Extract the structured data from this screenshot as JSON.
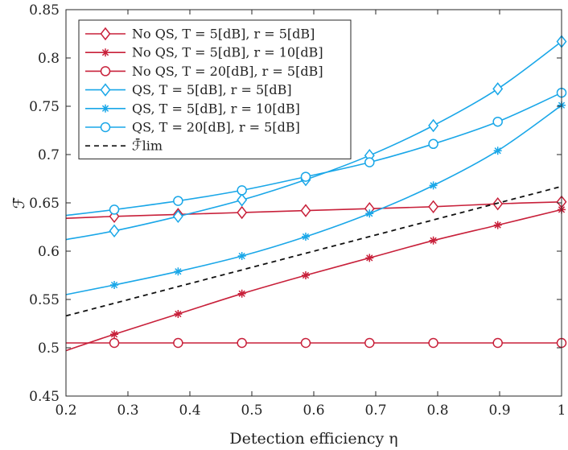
{
  "chart_data": {
    "type": "line",
    "xlabel": "Detection efficiency η",
    "ylabel": "ℱ̄",
    "xlim": [
      0.2,
      1.0
    ],
    "ylim": [
      0.45,
      0.85
    ],
    "xticks": [
      "0.2",
      "0.3",
      "0.4",
      "0.5",
      "0.6",
      "0.7",
      "0.8",
      "0.9",
      "1"
    ],
    "yticks": [
      "0.45",
      "0.5",
      "0.55",
      "0.6",
      "0.65",
      "0.7",
      "0.75",
      "0.8",
      "0.85"
    ],
    "xtick_values": [
      0.2,
      0.3,
      0.4,
      0.5,
      0.6,
      0.7,
      0.8,
      0.9,
      1.0
    ],
    "ytick_values": [
      0.45,
      0.5,
      0.55,
      0.6,
      0.65,
      0.7,
      0.75,
      0.8,
      0.85
    ],
    "marker_x": [
      0.278,
      0.381,
      0.484,
      0.587,
      0.69,
      0.793,
      0.897,
      1.0
    ],
    "grid": false,
    "legend_position": "top-left",
    "series": [
      {
        "name": "No QS, T = 5[dB], r = 5[dB]",
        "color": "#c8203a",
        "marker": "diamond",
        "dash": "solid",
        "line_x": [
          0.2,
          0.278,
          0.381,
          0.484,
          0.587,
          0.69,
          0.793,
          0.897,
          1.0
        ],
        "line_y": [
          0.634,
          0.636,
          0.638,
          0.64,
          0.642,
          0.644,
          0.646,
          0.649,
          0.651
        ],
        "marker_y": [
          0.636,
          0.638,
          0.64,
          0.642,
          0.644,
          0.646,
          0.649,
          0.651
        ]
      },
      {
        "name": "No QS, T = 5[dB], r = 10[dB]",
        "color": "#c8203a",
        "marker": "star",
        "dash": "solid",
        "line_x": [
          0.2,
          0.278,
          0.381,
          0.484,
          0.587,
          0.69,
          0.793,
          0.897,
          1.0
        ],
        "line_y": [
          0.497,
          0.514,
          0.535,
          0.556,
          0.575,
          0.593,
          0.611,
          0.627,
          0.643
        ],
        "marker_y": [
          0.514,
          0.535,
          0.556,
          0.575,
          0.593,
          0.611,
          0.627,
          0.643
        ]
      },
      {
        "name": "No QS, T = 20[dB], r = 5[dB]",
        "color": "#c8203a",
        "marker": "circle",
        "dash": "solid",
        "line_x": [
          0.2,
          0.278,
          0.381,
          0.484,
          0.587,
          0.69,
          0.793,
          0.897,
          1.0
        ],
        "line_y": [
          0.505,
          0.505,
          0.505,
          0.505,
          0.505,
          0.505,
          0.505,
          0.505,
          0.505
        ],
        "marker_y": [
          0.505,
          0.505,
          0.505,
          0.505,
          0.505,
          0.505,
          0.505,
          0.505
        ]
      },
      {
        "name": "QS, T = 5[dB], r = 5[dB]",
        "color": "#1aa7e8",
        "marker": "diamond",
        "dash": "solid",
        "line_x": [
          0.2,
          0.278,
          0.381,
          0.484,
          0.587,
          0.69,
          0.793,
          0.897,
          1.0
        ],
        "line_y": [
          0.612,
          0.621,
          0.636,
          0.653,
          0.674,
          0.699,
          0.73,
          0.768,
          0.817
        ],
        "marker_y": [
          0.621,
          0.636,
          0.653,
          0.674,
          0.699,
          0.73,
          0.768,
          0.817
        ]
      },
      {
        "name": "QS, T = 5[dB], r = 10[dB]",
        "color": "#1aa7e8",
        "marker": "star",
        "dash": "solid",
        "line_x": [
          0.2,
          0.278,
          0.381,
          0.484,
          0.587,
          0.69,
          0.793,
          0.897,
          1.0
        ],
        "line_y": [
          0.555,
          0.565,
          0.579,
          0.595,
          0.615,
          0.639,
          0.668,
          0.704,
          0.751
        ],
        "marker_y": [
          0.565,
          0.579,
          0.595,
          0.615,
          0.639,
          0.668,
          0.704,
          0.751
        ]
      },
      {
        "name": "QS, T = 20[dB], r = 5[dB]",
        "color": "#1aa7e8",
        "marker": "circle",
        "dash": "solid",
        "line_x": [
          0.2,
          0.278,
          0.381,
          0.484,
          0.587,
          0.69,
          0.793,
          0.897,
          1.0
        ],
        "line_y": [
          0.637,
          0.643,
          0.652,
          0.663,
          0.677,
          0.692,
          0.711,
          0.734,
          0.764
        ],
        "marker_y": [
          0.643,
          0.652,
          0.663,
          0.677,
          0.692,
          0.711,
          0.734,
          0.764
        ]
      },
      {
        "name": "ℱ̄lim",
        "color": "#111111",
        "marker": "none",
        "dash": "dashed",
        "line_x": [
          0.2,
          1.0
        ],
        "line_y": [
          0.533,
          0.667
        ],
        "marker_y": []
      }
    ]
  }
}
